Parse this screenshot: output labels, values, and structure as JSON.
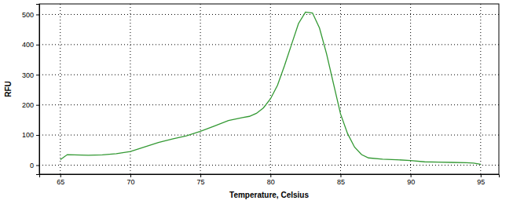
{
  "chart_data": {
    "type": "line",
    "x_label": "Temperature, Celsius",
    "y_label": "RFU",
    "x": [
      65,
      65.5,
      66,
      67,
      68,
      69,
      70,
      71,
      72,
      73,
      74,
      75,
      76,
      77,
      78,
      78.5,
      79,
      79.5,
      80,
      80.5,
      81,
      81.5,
      82,
      82.5,
      83,
      83.5,
      84,
      84.5,
      85,
      85.5,
      86,
      86.5,
      87,
      88,
      89,
      90,
      91,
      92,
      93,
      94,
      94.5,
      95
    ],
    "values": [
      18,
      35,
      34,
      33,
      34,
      38,
      45,
      60,
      75,
      87,
      97,
      112,
      130,
      148,
      158,
      162,
      172,
      190,
      220,
      265,
      330,
      400,
      470,
      508,
      505,
      455,
      370,
      270,
      170,
      105,
      60,
      35,
      24,
      20,
      18,
      15,
      11,
      10,
      9,
      8,
      7,
      3
    ],
    "color": "#339933",
    "xlim": [
      63.5,
      96.3
    ],
    "ylim": [
      -30,
      535
    ],
    "xticks": [
      65,
      70,
      75,
      80,
      85,
      90,
      95
    ],
    "yticks": [
      0,
      100,
      200,
      300,
      400,
      500
    ],
    "grid": true
  }
}
